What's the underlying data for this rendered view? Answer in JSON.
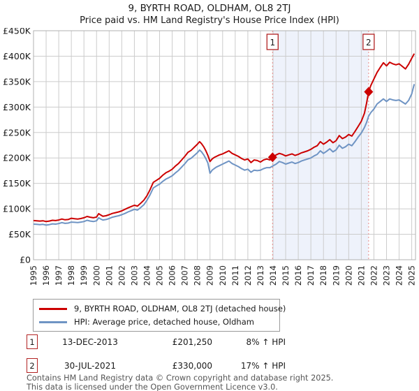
{
  "page": {
    "title": "9, BYRTH ROAD, OLDHAM, OL8 2TJ",
    "subtitle": "Price paid vs. HM Land Registry's House Price Index (HPI)"
  },
  "chart_data": {
    "type": "line",
    "title": "9, BYRTH ROAD, OLDHAM, OL8 2TJ",
    "subtitle": "Price paid vs. HM Land Registry's House Price Index (HPI)",
    "x_axis": {
      "range": [
        1995,
        2025.3
      ],
      "years": [
        1995,
        1996,
        1997,
        1998,
        1999,
        2000,
        2001,
        2002,
        2003,
        2004,
        2005,
        2006,
        2007,
        2008,
        2009,
        2010,
        2011,
        2012,
        2013,
        2014,
        2015,
        2016,
        2017,
        2018,
        2019,
        2020,
        2021,
        2022,
        2023,
        2024,
        2025
      ]
    },
    "y_axis": {
      "range": [
        0,
        450
      ],
      "unit": "GBP thousands",
      "tick_values": [
        0,
        50,
        100,
        150,
        200,
        250,
        300,
        350,
        400,
        450
      ],
      "ticks": [
        "£0",
        "£50K",
        "£100K",
        "£150K",
        "£200K",
        "£250K",
        "£300K",
        "£350K",
        "£400K",
        "£450K"
      ]
    },
    "grid": true,
    "legend_position": "bottom",
    "colors": {
      "property": "#cc0000",
      "hpi": "#6f94c4",
      "grid": "#cccccc",
      "border": "#b0b0b0",
      "dashed": "#e88a8a",
      "shade": "#eef2fb",
      "number_box_border": "#b22222"
    },
    "series": [
      {
        "name": "9, BYRTH ROAD, OLDHAM, OL8 2TJ (detached house)",
        "color": "#cc0000",
        "points": [
          [
            1995.0,
            77
          ],
          [
            1995.25,
            76.5
          ],
          [
            1995.5,
            76
          ],
          [
            1995.75,
            76.5
          ],
          [
            1996.0,
            75
          ],
          [
            1996.25,
            76
          ],
          [
            1996.5,
            77.5
          ],
          [
            1996.75,
            77
          ],
          [
            1997.0,
            78
          ],
          [
            1997.25,
            80
          ],
          [
            1997.5,
            78.5
          ],
          [
            1997.75,
            79
          ],
          [
            1998.0,
            81.5
          ],
          [
            1998.25,
            80.5
          ],
          [
            1998.5,
            80
          ],
          [
            1998.75,
            81
          ],
          [
            1999.0,
            82.5
          ],
          [
            1999.25,
            85
          ],
          [
            1999.5,
            83.5
          ],
          [
            1999.75,
            82.5
          ],
          [
            2000.0,
            84
          ],
          [
            2000.17,
            90.5
          ],
          [
            2000.33,
            88
          ],
          [
            2000.5,
            85.5
          ],
          [
            2000.75,
            86.5
          ],
          [
            2001.0,
            88.5
          ],
          [
            2001.25,
            91
          ],
          [
            2001.5,
            92.5
          ],
          [
            2001.75,
            94
          ],
          [
            2002.0,
            96
          ],
          [
            2002.25,
            99
          ],
          [
            2002.5,
            102
          ],
          [
            2002.75,
            104.5
          ],
          [
            2003.0,
            107
          ],
          [
            2003.25,
            105.5
          ],
          [
            2003.5,
            111
          ],
          [
            2003.75,
            117
          ],
          [
            2004.0,
            126
          ],
          [
            2004.25,
            138
          ],
          [
            2004.5,
            152
          ],
          [
            2004.75,
            156
          ],
          [
            2005.0,
            160
          ],
          [
            2005.25,
            166
          ],
          [
            2005.5,
            171
          ],
          [
            2005.75,
            174
          ],
          [
            2006.0,
            178
          ],
          [
            2006.25,
            184
          ],
          [
            2006.5,
            189
          ],
          [
            2006.75,
            196
          ],
          [
            2007.0,
            203
          ],
          [
            2007.25,
            211
          ],
          [
            2007.5,
            215
          ],
          [
            2007.75,
            221
          ],
          [
            2008.0,
            227
          ],
          [
            2008.17,
            232
          ],
          [
            2008.33,
            228
          ],
          [
            2008.5,
            222
          ],
          [
            2008.67,
            214
          ],
          [
            2008.83,
            205
          ],
          [
            2009.0,
            193
          ],
          [
            2009.17,
            198
          ],
          [
            2009.33,
            201
          ],
          [
            2009.5,
            203
          ],
          [
            2009.75,
            206
          ],
          [
            2010.0,
            208
          ],
          [
            2010.25,
            211
          ],
          [
            2010.5,
            214
          ],
          [
            2010.75,
            209
          ],
          [
            2011.0,
            206
          ],
          [
            2011.25,
            203
          ],
          [
            2011.5,
            199
          ],
          [
            2011.75,
            196
          ],
          [
            2012.0,
            198
          ],
          [
            2012.25,
            191
          ],
          [
            2012.5,
            196
          ],
          [
            2012.75,
            195
          ],
          [
            2013.0,
            192
          ],
          [
            2013.25,
            196
          ],
          [
            2013.5,
            198
          ],
          [
            2013.75,
            196
          ],
          [
            2013.96,
            201.25
          ],
          [
            2014.25,
            206
          ],
          [
            2014.5,
            209
          ],
          [
            2014.75,
            207
          ],
          [
            2015.0,
            204
          ],
          [
            2015.25,
            206
          ],
          [
            2015.5,
            208
          ],
          [
            2015.75,
            205
          ],
          [
            2016.0,
            207
          ],
          [
            2016.25,
            210
          ],
          [
            2016.5,
            212
          ],
          [
            2016.75,
            214
          ],
          [
            2017.0,
            217
          ],
          [
            2017.25,
            221
          ],
          [
            2017.5,
            224
          ],
          [
            2017.75,
            232
          ],
          [
            2018.0,
            227
          ],
          [
            2018.25,
            231
          ],
          [
            2018.5,
            236
          ],
          [
            2018.75,
            230
          ],
          [
            2019.0,
            234
          ],
          [
            2019.25,
            244
          ],
          [
            2019.5,
            238
          ],
          [
            2019.75,
            241
          ],
          [
            2020.0,
            246
          ],
          [
            2020.25,
            243
          ],
          [
            2020.5,
            252
          ],
          [
            2020.75,
            262
          ],
          [
            2021.0,
            272
          ],
          [
            2021.25,
            288
          ],
          [
            2021.42,
            308
          ],
          [
            2021.58,
            330
          ],
          [
            2021.75,
            342
          ],
          [
            2022.0,
            355
          ],
          [
            2022.25,
            368
          ],
          [
            2022.5,
            378
          ],
          [
            2022.75,
            387
          ],
          [
            2023.0,
            381
          ],
          [
            2023.25,
            388
          ],
          [
            2023.5,
            385
          ],
          [
            2023.75,
            383
          ],
          [
            2024.0,
            385
          ],
          [
            2024.25,
            380
          ],
          [
            2024.5,
            375
          ],
          [
            2024.75,
            384
          ],
          [
            2025.0,
            396
          ],
          [
            2025.2,
            405
          ]
        ]
      },
      {
        "name": "HPI: Average price, detached house, Oldham",
        "color": "#6f94c4",
        "points": [
          [
            1995.0,
            70
          ],
          [
            1995.25,
            69.5
          ],
          [
            1995.5,
            69
          ],
          [
            1995.75,
            69.5
          ],
          [
            1996.0,
            68
          ],
          [
            1996.25,
            69
          ],
          [
            1996.5,
            70.5
          ],
          [
            1996.75,
            70
          ],
          [
            1997.0,
            71
          ],
          [
            1997.25,
            73
          ],
          [
            1997.5,
            71.5
          ],
          [
            1997.75,
            72
          ],
          [
            1998.0,
            74
          ],
          [
            1998.25,
            73.5
          ],
          [
            1998.5,
            73
          ],
          [
            1998.75,
            74
          ],
          [
            1999.0,
            75
          ],
          [
            1999.25,
            77.5
          ],
          [
            1999.5,
            76
          ],
          [
            1999.75,
            75
          ],
          [
            2000.0,
            76.5
          ],
          [
            2000.17,
            82.5
          ],
          [
            2000.33,
            80
          ],
          [
            2000.5,
            78
          ],
          [
            2000.75,
            79
          ],
          [
            2001.0,
            81
          ],
          [
            2001.25,
            83.5
          ],
          [
            2001.5,
            85
          ],
          [
            2001.75,
            86.5
          ],
          [
            2002.0,
            88.5
          ],
          [
            2002.25,
            91
          ],
          [
            2002.5,
            94
          ],
          [
            2002.75,
            96.5
          ],
          [
            2003.0,
            99
          ],
          [
            2003.25,
            97.5
          ],
          [
            2003.5,
            102.5
          ],
          [
            2003.75,
            108
          ],
          [
            2004.0,
            117
          ],
          [
            2004.25,
            128
          ],
          [
            2004.5,
            141
          ],
          [
            2004.75,
            145
          ],
          [
            2005.0,
            148.5
          ],
          [
            2005.25,
            154
          ],
          [
            2005.5,
            158.5
          ],
          [
            2005.75,
            161.5
          ],
          [
            2006.0,
            165
          ],
          [
            2006.25,
            170.5
          ],
          [
            2006.5,
            175.5
          ],
          [
            2006.75,
            182
          ],
          [
            2007.0,
            188.5
          ],
          [
            2007.25,
            196
          ],
          [
            2007.5,
            199.5
          ],
          [
            2007.75,
            205
          ],
          [
            2008.0,
            210.5
          ],
          [
            2008.17,
            215.5
          ],
          [
            2008.33,
            212
          ],
          [
            2008.5,
            206
          ],
          [
            2008.67,
            198.5
          ],
          [
            2008.83,
            190
          ],
          [
            2009.0,
            170
          ],
          [
            2009.17,
            176
          ],
          [
            2009.33,
            179
          ],
          [
            2009.5,
            182
          ],
          [
            2009.75,
            185
          ],
          [
            2010.0,
            188
          ],
          [
            2010.25,
            191
          ],
          [
            2010.5,
            194
          ],
          [
            2010.75,
            189
          ],
          [
            2011.0,
            186
          ],
          [
            2011.25,
            183
          ],
          [
            2011.5,
            179
          ],
          [
            2011.75,
            176
          ],
          [
            2012.0,
            178
          ],
          [
            2012.25,
            172
          ],
          [
            2012.5,
            176
          ],
          [
            2012.75,
            175
          ],
          [
            2013.0,
            176
          ],
          [
            2013.25,
            179
          ],
          [
            2013.5,
            181
          ],
          [
            2013.75,
            181
          ],
          [
            2013.96,
            184
          ],
          [
            2014.25,
            188
          ],
          [
            2014.5,
            193
          ],
          [
            2014.75,
            191
          ],
          [
            2015.0,
            188
          ],
          [
            2015.25,
            190
          ],
          [
            2015.5,
            192
          ],
          [
            2015.75,
            189
          ],
          [
            2016.0,
            191
          ],
          [
            2016.25,
            194
          ],
          [
            2016.5,
            196
          ],
          [
            2016.75,
            198
          ],
          [
            2017.0,
            200
          ],
          [
            2017.25,
            204
          ],
          [
            2017.5,
            207
          ],
          [
            2017.75,
            214
          ],
          [
            2018.0,
            209
          ],
          [
            2018.25,
            213
          ],
          [
            2018.5,
            218
          ],
          [
            2018.75,
            212
          ],
          [
            2019.0,
            216
          ],
          [
            2019.25,
            225
          ],
          [
            2019.5,
            219
          ],
          [
            2019.75,
            222
          ],
          [
            2020.0,
            227
          ],
          [
            2020.25,
            224
          ],
          [
            2020.5,
            232
          ],
          [
            2020.75,
            241
          ],
          [
            2021.0,
            249
          ],
          [
            2021.25,
            260
          ],
          [
            2021.42,
            270
          ],
          [
            2021.58,
            282
          ],
          [
            2021.75,
            289
          ],
          [
            2022.0,
            296
          ],
          [
            2022.25,
            306
          ],
          [
            2022.5,
            311
          ],
          [
            2022.75,
            316
          ],
          [
            2023.0,
            311
          ],
          [
            2023.25,
            316
          ],
          [
            2023.5,
            314
          ],
          [
            2023.75,
            313
          ],
          [
            2024.0,
            314
          ],
          [
            2024.25,
            310
          ],
          [
            2024.5,
            306
          ],
          [
            2024.75,
            313
          ],
          [
            2025.0,
            326
          ],
          [
            2025.2,
            345
          ]
        ]
      }
    ],
    "sales": [
      {
        "n": "1",
        "x": 2013.96,
        "y": 201.25,
        "date": "13-DEC-2013",
        "price": "£201,250",
        "hpi": "8% ↑ HPI"
      },
      {
        "n": "2",
        "x": 2021.58,
        "y": 330,
        "date": "30-JUL-2021",
        "price": "£330,000",
        "hpi": "17% ↑ HPI"
      }
    ]
  },
  "footer": {
    "line1": "Contains HM Land Registry data © Crown copyright and database right 2025.",
    "line2": "This data is licensed under the Open Government Licence v3.0."
  }
}
